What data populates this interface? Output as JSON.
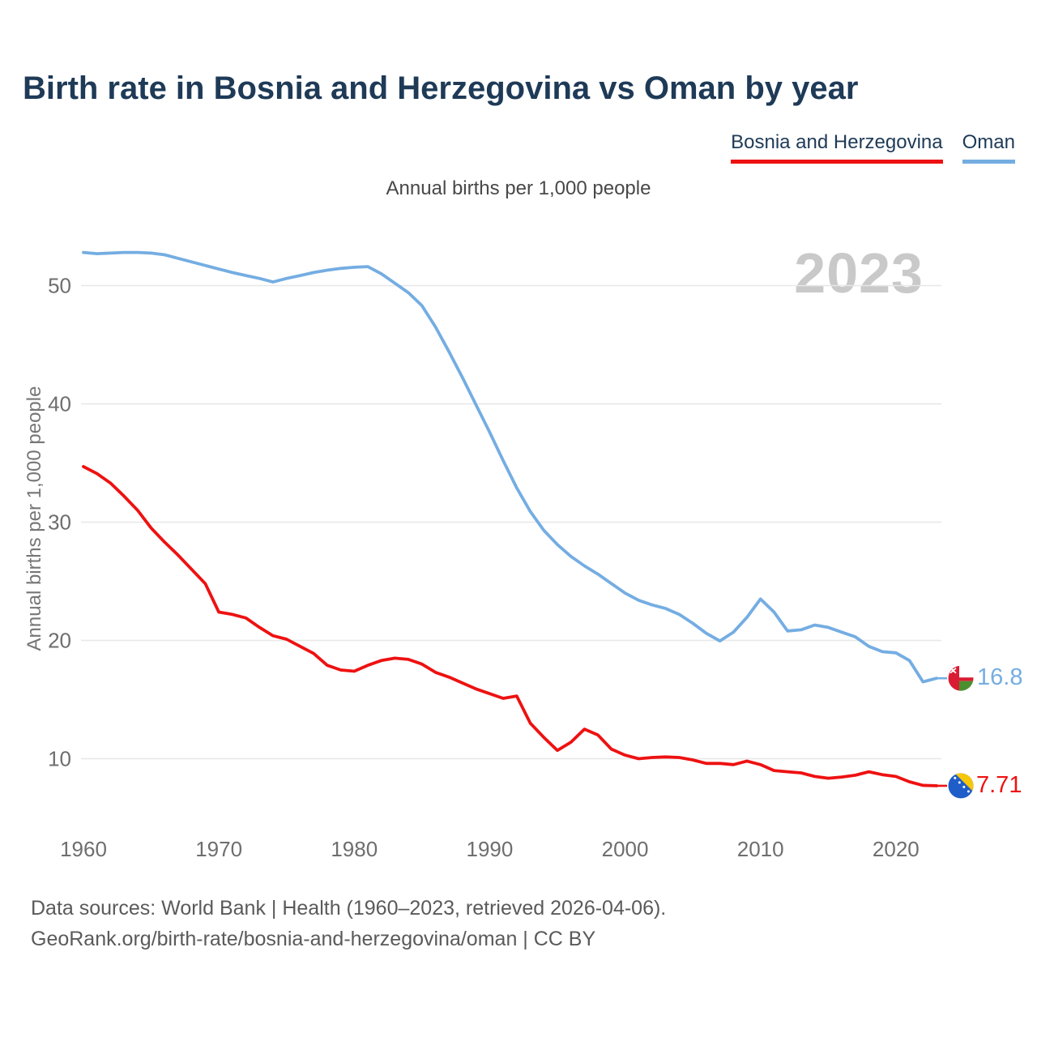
{
  "title": "Birth rate in Bosnia and Herzegovina vs Oman by year",
  "subtitle": "Annual births per 1,000 people",
  "watermark": "2023",
  "legend": {
    "items": [
      {
        "label": "Bosnia and Herzegovina",
        "color": "#ee1111"
      },
      {
        "label": "Oman",
        "color": "#74ade2"
      }
    ]
  },
  "y_axis_title": "Annual births per 1,000 people",
  "end_labels": {
    "oman": "16.8",
    "bosnia": "7.71"
  },
  "footer": {
    "line1": "Data sources: World Bank | Health (1960–2023, retrieved 2026-04-06).",
    "line2": "GeoRank.org/birth-rate/bosnia-and-herzegovina/oman | CC BY"
  },
  "colors": {
    "title_navy": "#1e3a57",
    "bosnia_red": "#ee1111",
    "oman_blue": "#74ade2",
    "gridline": "#e7e7e7",
    "tick_text": "#6e6e6e",
    "watermark_gray": "#c9c9c9",
    "oman_flag_red": "#da1c33",
    "oman_flag_green": "#4b8f2f",
    "bosnia_flag_blue": "#1f5ec9",
    "bosnia_flag_yellow": "#f7c608"
  },
  "chart_data": {
    "type": "line",
    "title": "Annual births per 1,000 people",
    "xlabel": "",
    "ylabel": "Annual births per 1,000 people",
    "grid": "horizontal",
    "legend_position": "top-right",
    "watermark": "2023",
    "xlim": [
      1960,
      2023
    ],
    "ylim": [
      6,
      55
    ],
    "yticks": [
      50,
      40,
      30,
      20,
      10
    ],
    "xticks": [
      1960,
      1970,
      1980,
      1990,
      2000,
      2010,
      2020
    ],
    "years": [
      1960,
      1961,
      1962,
      1963,
      1964,
      1965,
      1966,
      1967,
      1968,
      1969,
      1970,
      1971,
      1972,
      1973,
      1974,
      1975,
      1976,
      1977,
      1978,
      1979,
      1980,
      1981,
      1982,
      1983,
      1984,
      1985,
      1986,
      1987,
      1988,
      1989,
      1990,
      1991,
      1992,
      1993,
      1994,
      1995,
      1996,
      1997,
      1998,
      1999,
      2000,
      2001,
      2002,
      2003,
      2004,
      2005,
      2006,
      2007,
      2008,
      2009,
      2010,
      2011,
      2012,
      2013,
      2014,
      2015,
      2016,
      2017,
      2018,
      2019,
      2020,
      2021,
      2022,
      2023
    ],
    "series": [
      {
        "name": "Bosnia and Herzegovina",
        "color": "#ee1111",
        "end_label": "7.71",
        "values": [
          34.7,
          34.1,
          33.3,
          32.2,
          31.0,
          29.5,
          28.3,
          27.2,
          26.0,
          24.8,
          22.4,
          22.2,
          21.9,
          21.1,
          20.4,
          20.1,
          19.5,
          18.9,
          17.9,
          17.5,
          17.4,
          17.9,
          18.3,
          18.5,
          18.4,
          18.0,
          17.3,
          16.9,
          16.4,
          15.9,
          15.5,
          15.1,
          15.3,
          13.0,
          11.8,
          10.7,
          11.4,
          12.5,
          12.0,
          10.8,
          10.3,
          10.0,
          10.1,
          10.15,
          10.1,
          9.9,
          9.6,
          9.6,
          9.5,
          9.8,
          9.5,
          9.0,
          8.9,
          8.8,
          8.5,
          8.35,
          8.45,
          8.6,
          8.9,
          8.65,
          8.5,
          8.05,
          7.75,
          7.71
        ]
      },
      {
        "name": "Oman",
        "color": "#74ade2",
        "end_label": "16.8",
        "values": [
          52.8,
          52.7,
          52.75,
          52.8,
          52.8,
          52.75,
          52.6,
          52.3,
          52.0,
          51.7,
          51.4,
          51.1,
          50.85,
          50.6,
          50.3,
          50.6,
          50.85,
          51.1,
          51.3,
          51.45,
          51.55,
          51.6,
          51.0,
          50.2,
          49.4,
          48.3,
          46.5,
          44.4,
          42.2,
          39.9,
          37.6,
          35.2,
          32.9,
          30.9,
          29.3,
          28.1,
          27.1,
          26.3,
          25.6,
          24.8,
          24.0,
          23.4,
          23.0,
          22.7,
          22.2,
          21.45,
          20.6,
          19.95,
          20.7,
          21.95,
          23.5,
          22.4,
          20.8,
          20.9,
          21.3,
          21.1,
          20.7,
          20.3,
          19.5,
          19.05,
          18.95,
          18.3,
          16.5,
          16.8
        ]
      }
    ]
  }
}
